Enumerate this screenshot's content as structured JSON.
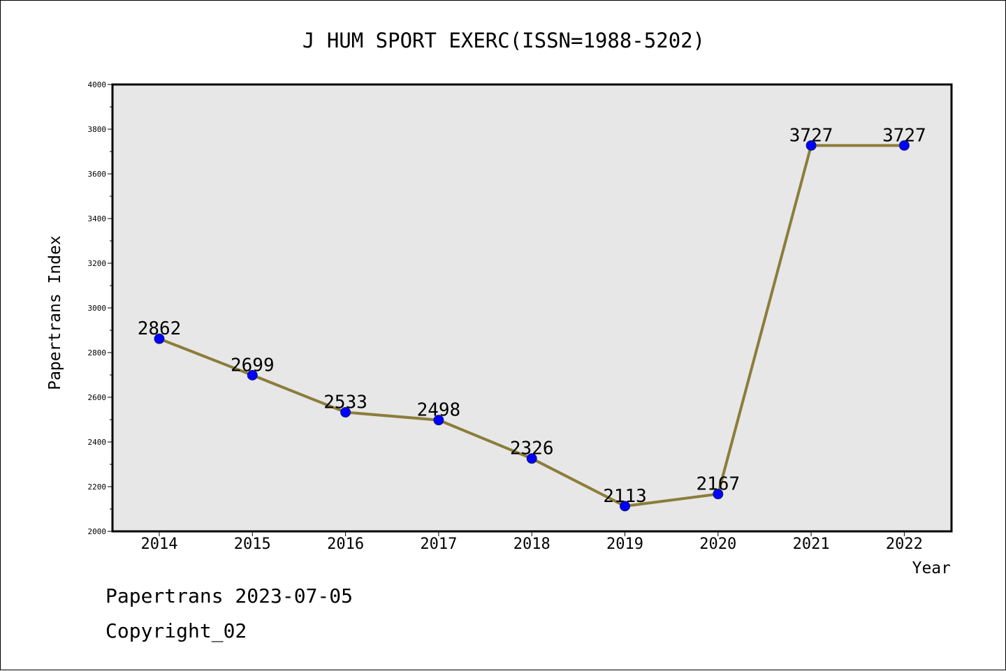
{
  "chart_data": {
    "type": "line",
    "title": "J HUM SPORT EXERC(ISSN=1988-5202)",
    "xlabel": "Year",
    "ylabel": "Papertrans Index",
    "categories": [
      "2014",
      "2015",
      "2016",
      "2017",
      "2018",
      "2019",
      "2020",
      "2021",
      "2022"
    ],
    "series": [
      {
        "values": [
          2862,
          2699,
          2533,
          2498,
          2326,
          2113,
          2167,
          3727,
          3727
        ],
        "data_labels": [
          "2862",
          "2699",
          "2533",
          "2498",
          "2326",
          "2113",
          "2167",
          "3727",
          "3727"
        ]
      }
    ],
    "ylim": [
      2000,
      4000
    ],
    "yticks": [
      "2000",
      "2200",
      "2400",
      "2600",
      "2800",
      "3000",
      "3200",
      "3400",
      "3600",
      "3800",
      "4000"
    ],
    "grid": false,
    "line_color": "#8b7d3a",
    "marker_color": "#0000ff",
    "plot_background": "#e7e7e7"
  },
  "footer": {
    "source": "Papertrans 2023-07-05",
    "copyright": "Copyright_02"
  }
}
